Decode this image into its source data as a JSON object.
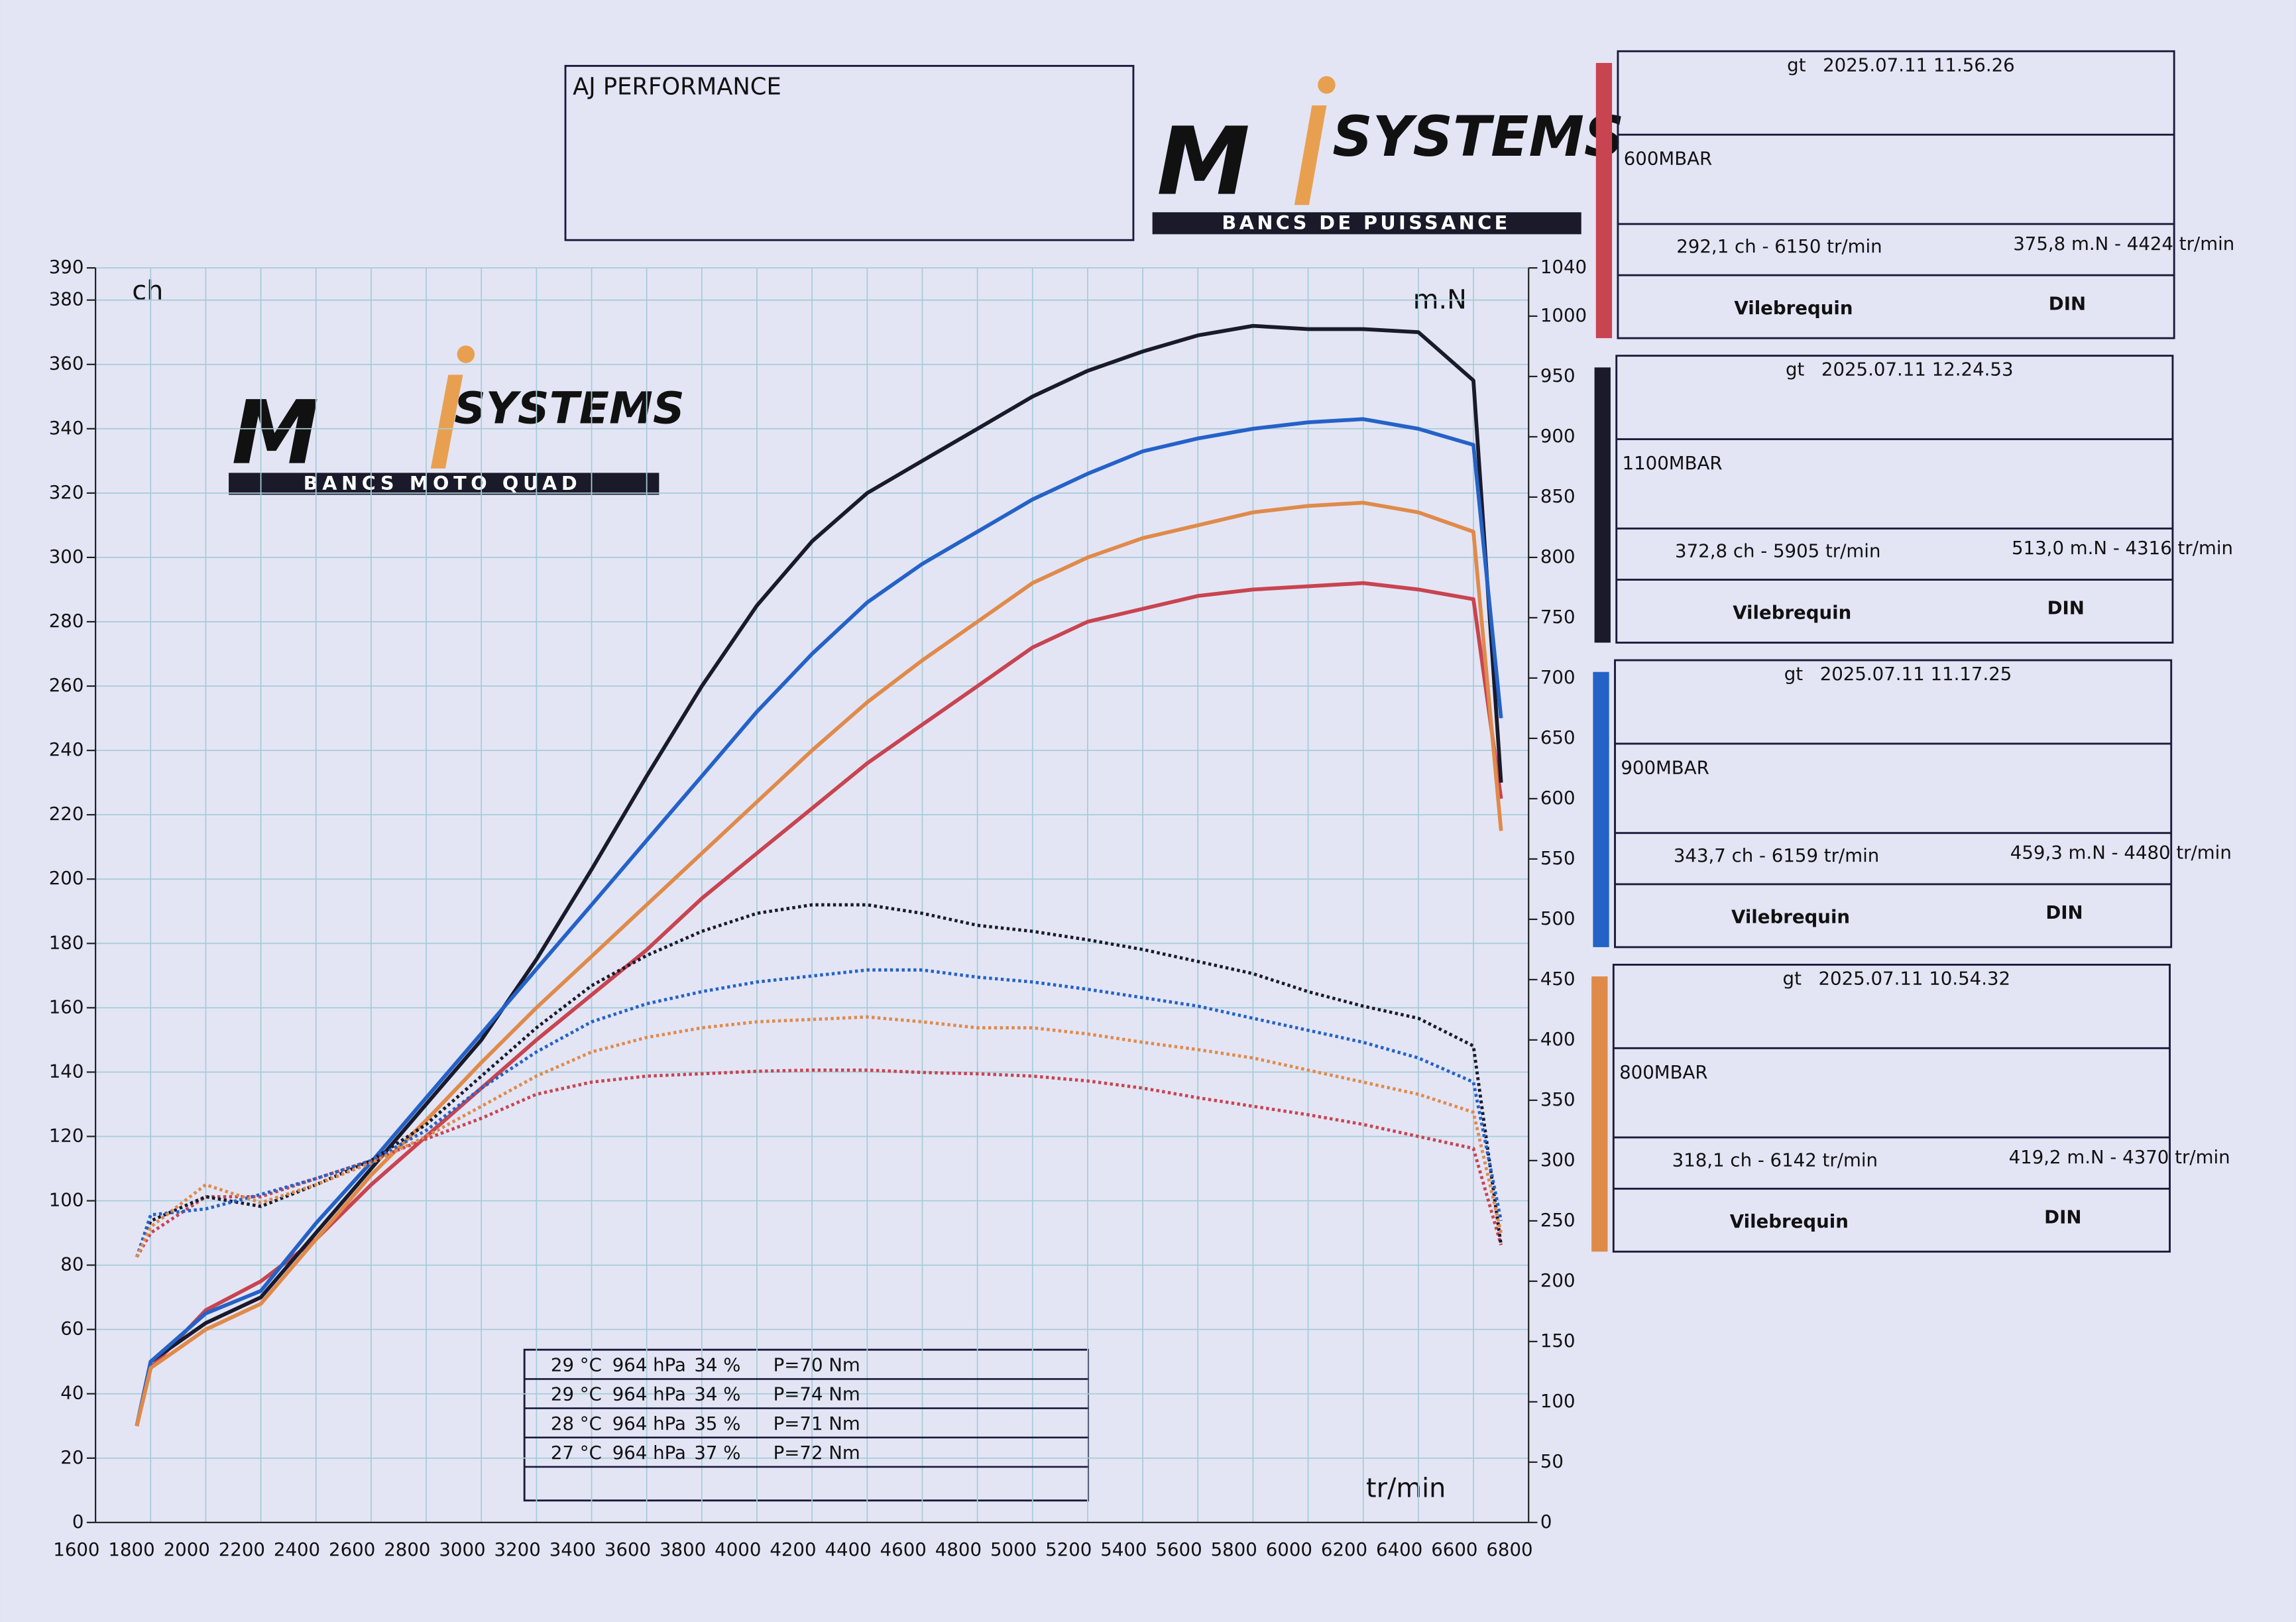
{
  "header": {
    "title": "AJ PERFORMANCE"
  },
  "logo_top": {
    "letter": "M",
    "name": "SYSTEMS",
    "tagline": "BANCS DE PUISSANCE"
  },
  "logo_chart": {
    "letter": "M",
    "name": "SYSTEMS",
    "tagline": "BANCS MOTO QUAD"
  },
  "chart_data": {
    "type": "line",
    "y_label": "ch",
    "y2_label": "m.N",
    "x_label": "tr/min",
    "x": [
      1750,
      1800,
      2000,
      2200,
      2400,
      2600,
      2800,
      3000,
      3200,
      3400,
      3600,
      3800,
      4000,
      4200,
      4400,
      4600,
      4800,
      5000,
      5200,
      5400,
      5600,
      5800,
      6000,
      6200,
      6400,
      6600,
      6700
    ],
    "xlim": [
      1600,
      6800
    ],
    "xticks": [
      1600,
      1800,
      2000,
      2200,
      2400,
      2600,
      2800,
      3000,
      3200,
      3400,
      3600,
      3800,
      4000,
      4200,
      4400,
      4600,
      4800,
      5000,
      5200,
      5400,
      5600,
      5800,
      6000,
      6200,
      6400,
      6600,
      6800
    ],
    "ylim": [
      0,
      390
    ],
    "yticks": [
      0,
      20,
      40,
      60,
      80,
      100,
      120,
      140,
      160,
      180,
      200,
      220,
      240,
      260,
      280,
      300,
      320,
      340,
      360,
      380,
      390
    ],
    "y2lim": [
      0,
      1040
    ],
    "y2ticks": [
      0,
      50,
      100,
      150,
      200,
      250,
      300,
      350,
      400,
      450,
      500,
      550,
      600,
      650,
      700,
      750,
      800,
      850,
      900,
      950,
      1000,
      1040
    ],
    "grid": true,
    "series": [
      {
        "name": "600MBAR",
        "color": "#c84450",
        "style": "solid",
        "values": [
          30,
          48,
          66,
          75,
          88,
          105,
          120,
          135,
          150,
          164,
          178,
          194,
          208,
          222,
          236,
          248,
          260,
          272,
          280,
          284,
          288,
          290,
          291,
          292,
          290,
          287,
          225
        ]
      },
      {
        "name": "1100MBAR",
        "color": "#1a1a2a",
        "style": "solid",
        "values": [
          30,
          50,
          62,
          70,
          90,
          110,
          130,
          150,
          175,
          203,
          232,
          260,
          285,
          305,
          320,
          330,
          340,
          350,
          358,
          364,
          369,
          372,
          371,
          371,
          370,
          355,
          230
        ]
      },
      {
        "name": "900MBAR",
        "color": "#2462c8",
        "style": "solid",
        "values": [
          30,
          50,
          65,
          72,
          93,
          112,
          132,
          152,
          172,
          192,
          212,
          232,
          252,
          270,
          286,
          298,
          308,
          318,
          326,
          333,
          337,
          340,
          342,
          343,
          340,
          335,
          250
        ]
      },
      {
        "name": "800MBAR",
        "color": "#e08a4a",
        "style": "solid",
        "values": [
          30,
          48,
          60,
          68,
          88,
          108,
          125,
          143,
          160,
          176,
          192,
          208,
          224,
          240,
          255,
          268,
          280,
          292,
          300,
          306,
          310,
          314,
          316,
          317,
          314,
          308,
          215
        ]
      },
      {
        "color": "#c84450",
        "style": "dotted",
        "axis": "y2",
        "values": [
          220,
          240,
          270,
          270,
          285,
          300,
          318,
          335,
          355,
          365,
          370,
          372,
          374,
          375,
          375,
          373,
          372,
          370,
          366,
          360,
          352,
          345,
          338,
          330,
          320,
          310,
          230
        ]
      },
      {
        "color": "#1a1a2a",
        "style": "dotted",
        "axis": "y2",
        "values": [
          220,
          250,
          270,
          262,
          280,
          300,
          330,
          370,
          410,
          445,
          470,
          490,
          505,
          512,
          512,
          505,
          495,
          490,
          483,
          475,
          465,
          455,
          440,
          428,
          418,
          395,
          230
        ]
      },
      {
        "color": "#2462c8",
        "style": "dotted",
        "axis": "y2",
        "values": [
          220,
          255,
          260,
          272,
          285,
          300,
          325,
          360,
          390,
          415,
          430,
          440,
          448,
          453,
          458,
          458,
          452,
          448,
          442,
          435,
          428,
          418,
          408,
          398,
          385,
          365,
          250
        ]
      },
      {
        "color": "#e08a4a",
        "style": "dotted",
        "axis": "y2",
        "values": [
          220,
          245,
          280,
          265,
          280,
          298,
          320,
          345,
          370,
          390,
          402,
          410,
          415,
          417,
          419,
          415,
          410,
          410,
          405,
          398,
          392,
          385,
          375,
          365,
          355,
          340,
          240
        ]
      }
    ]
  },
  "runs": [
    {
      "program": "gt",
      "date": "2025.07.11 11.56.26",
      "power_peak": "292,1 ch - 6150 tr/min",
      "torque_peak": "375,8 m.N - 4424 tr/min",
      "crank": "Vilebrequin",
      "norm": "DIN"
    },
    {
      "program": "gt",
      "date": "2025.07.11 12.24.53",
      "power_peak": "372,8 ch - 5905 tr/min",
      "torque_peak": "513,0 m.N - 4316 tr/min",
      "crank": "Vilebrequin",
      "norm": "DIN"
    },
    {
      "program": "gt",
      "date": "2025.07.11 11.17.25",
      "power_peak": "343,7 ch - 6159 tr/min",
      "torque_peak": "459,3 m.N - 4480 tr/min",
      "crank": "Vilebrequin",
      "norm": "DIN"
    },
    {
      "program": "gt",
      "date": "2025.07.11 10.54.32",
      "power_peak": "318,1 ch - 6142 tr/min",
      "torque_peak": "419,2 m.N - 4370 tr/min",
      "crank": "Vilebrequin",
      "norm": "DIN"
    }
  ],
  "conditions": {
    "rows": [
      [
        "29 °C",
        "964 hPa",
        "34 %",
        "P=70 Nm"
      ],
      [
        "29 °C",
        "964 hPa",
        "34 %",
        "P=74 Nm"
      ],
      [
        "28 °C",
        "964 hPa",
        "35 %",
        "P=71 Nm"
      ],
      [
        "27 °C",
        "964 hPa",
        "37 %",
        "P=72 Nm"
      ]
    ]
  }
}
